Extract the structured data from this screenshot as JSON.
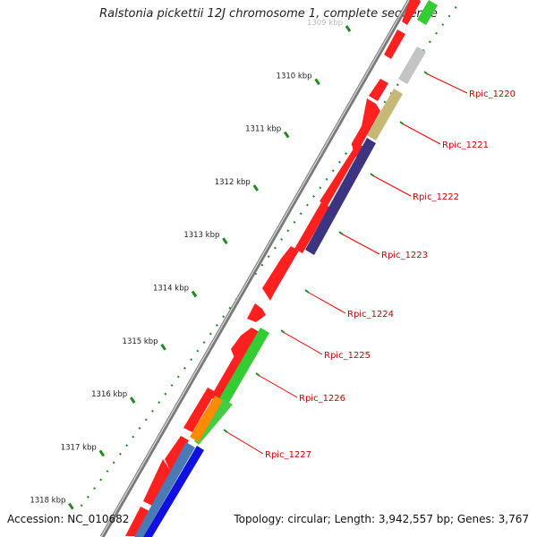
{
  "title": "Ralstonia pickettii 12J chromosome 1, complete sequence",
  "footer": {
    "accession": "Accession: NC_010682",
    "summary": "Topology: circular; Length: 3,942,557 bp; Genes: 3,767"
  },
  "ticks": [
    {
      "label": "1309 kbp",
      "major": true
    },
    {
      "label": "1310 kbp",
      "major": true
    },
    {
      "label": "1311 kbp",
      "major": true
    },
    {
      "label": "1312 kbp",
      "major": true
    },
    {
      "label": "1313 kbp",
      "major": true
    },
    {
      "label": "1314 kbp",
      "major": true
    },
    {
      "label": "1315 kbp",
      "major": true
    },
    {
      "label": "1316 kbp",
      "major": true
    },
    {
      "label": "1317 kbp",
      "major": true
    },
    {
      "label": "1318 kbp",
      "major": true
    }
  ],
  "genes": [
    {
      "label": "Rpic_1220",
      "color": "#c0c0c0"
    },
    {
      "label": "Rpic_1221",
      "color": "#c8b870"
    },
    {
      "label": "Rpic_1222",
      "color": "#3d3580"
    },
    {
      "label": "Rpic_1223",
      "color": "#3d3580"
    },
    {
      "label": "Rpic_1224",
      "color": "#3d3580"
    },
    {
      "label": "Rpic_1225",
      "color": "#3dcc3d"
    },
    {
      "label": "Rpic_1226",
      "color": "#3dcc3d"
    },
    {
      "label": "Rpic_1227",
      "color": "#ff8800"
    }
  ],
  "colors": {
    "backbone": "#808080",
    "cds": "#ff0000",
    "callout": "#ff0000",
    "label": "#cc0000",
    "tick": "#228822"
  }
}
